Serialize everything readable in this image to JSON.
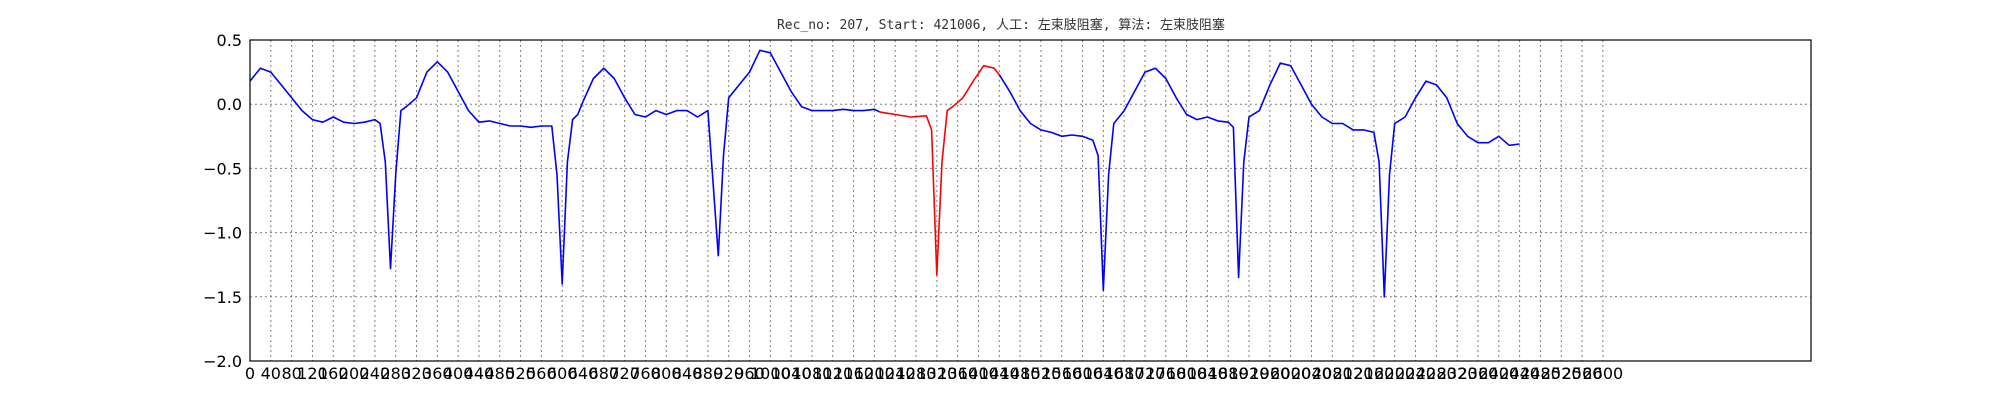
{
  "chart_data": {
    "type": "line",
    "title": "Rec_no: 207, Start: 421006, 人工: 左束肢阻塞, 算法: 左束肢阻塞",
    "xlabel": "",
    "ylabel": "",
    "xlim": [
      0,
      3000
    ],
    "ylim": [
      -2.0,
      0.5
    ],
    "grid": true,
    "yticks": [
      0.5,
      0.0,
      -0.5,
      -1.0,
      -1.5,
      -2.0
    ],
    "ytick_labels": [
      "0.5",
      "0.0",
      "−0.5",
      "−1.0",
      "−1.5",
      "−2.0"
    ],
    "xticks_step": 40,
    "xticks_max": 2600,
    "series": [
      {
        "color": "#0000ff",
        "x": [
          0,
          20,
          40,
          60,
          80,
          100,
          120,
          140,
          160,
          180,
          200,
          220,
          240,
          250,
          260,
          270,
          280,
          290,
          300,
          320,
          340,
          360,
          380,
          400,
          420,
          440,
          460,
          480,
          500,
          520,
          540,
          560,
          580,
          590,
          600,
          610,
          620,
          630,
          640,
          660,
          680,
          700,
          720,
          740,
          760,
          780,
          800,
          820,
          840,
          860,
          880,
          900,
          910,
          920,
          930,
          940,
          960,
          980,
          1000,
          1020,
          1040,
          1060,
          1080,
          1100,
          1120,
          1140,
          1160,
          1180,
          1200,
          1210
        ],
        "y": [
          0.18,
          0.28,
          0.25,
          0.15,
          0.05,
          -0.05,
          -0.12,
          -0.14,
          -0.1,
          -0.14,
          -0.15,
          -0.14,
          -0.12,
          -0.15,
          -0.45,
          -1.28,
          -0.55,
          -0.05,
          -0.02,
          0.05,
          0.25,
          0.33,
          0.25,
          0.1,
          -0.05,
          -0.14,
          -0.13,
          -0.15,
          -0.17,
          -0.17,
          -0.18,
          -0.17,
          -0.17,
          -0.55,
          -1.4,
          -0.45,
          -0.12,
          -0.08,
          0.02,
          0.2,
          0.28,
          0.2,
          0.05,
          -0.08,
          -0.1,
          -0.05,
          -0.08,
          -0.05,
          -0.05,
          -0.1,
          -0.05,
          -1.18,
          -0.4,
          0.05,
          0.1,
          0.15,
          0.25,
          0.42,
          0.4,
          0.25,
          0.1,
          -0.02,
          -0.05,
          -0.05,
          -0.05,
          -0.04,
          -0.05,
          -0.05,
          -0.04,
          -0.06
        ]
      },
      {
        "color": "#ff0000",
        "x": [
          1210,
          1240,
          1270,
          1300,
          1310,
          1320,
          1330,
          1340,
          1350,
          1370,
          1390,
          1410,
          1430,
          1440
        ],
        "y": [
          -0.06,
          -0.08,
          -0.1,
          -0.09,
          -0.2,
          -1.33,
          -0.45,
          -0.05,
          -0.02,
          0.05,
          0.18,
          0.3,
          0.28,
          0.23
        ]
      },
      {
        "color": "#0000ff",
        "x": [
          1440,
          1460,
          1480,
          1500,
          1520,
          1540,
          1560,
          1580,
          1600,
          1620,
          1630,
          1640,
          1650,
          1660,
          1680,
          1700,
          1720,
          1740,
          1760,
          1780,
          1800,
          1820,
          1840,
          1860,
          1880,
          1890,
          1900,
          1910,
          1920,
          1940,
          1960,
          1980,
          2000,
          2020,
          2040,
          2060,
          2080,
          2100,
          2120,
          2140,
          2160,
          2170,
          2180,
          2190,
          2200,
          2220,
          2240,
          2260,
          2280,
          2300,
          2320,
          2340,
          2360,
          2380,
          2400,
          2420,
          2440
        ],
        "y": [
          0.23,
          0.1,
          -0.05,
          -0.15,
          -0.2,
          -0.22,
          -0.25,
          -0.24,
          -0.25,
          -0.28,
          -0.4,
          -1.45,
          -0.55,
          -0.15,
          -0.05,
          0.1,
          0.25,
          0.28,
          0.2,
          0.05,
          -0.08,
          -0.12,
          -0.1,
          -0.13,
          -0.14,
          -0.18,
          -1.35,
          -0.45,
          -0.1,
          -0.05,
          0.15,
          0.32,
          0.3,
          0.15,
          0.0,
          -0.1,
          -0.15,
          -0.15,
          -0.2,
          -0.2,
          -0.22,
          -0.45,
          -1.5,
          -0.55,
          -0.15,
          -0.1,
          0.05,
          0.18,
          0.15,
          0.05,
          -0.15,
          -0.25,
          -0.3,
          -0.3,
          -0.25,
          -0.32,
          -0.31
        ]
      }
    ]
  }
}
